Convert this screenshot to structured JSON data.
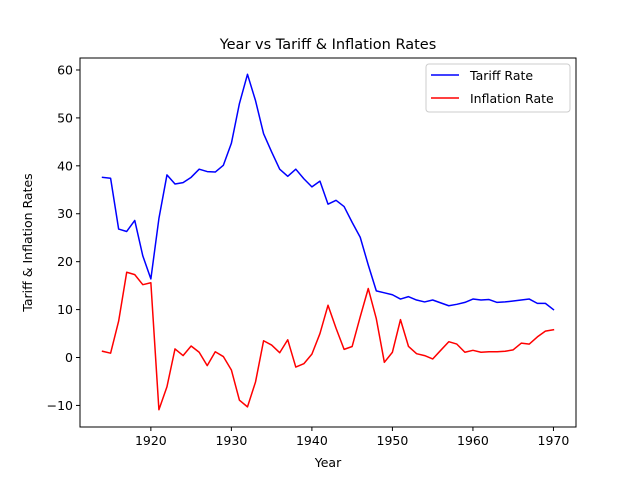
{
  "chart_data": {
    "type": "line",
    "title": "Year vs Tariff & Inflation Rates",
    "xlabel": "Year",
    "ylabel": "Tariff & Inflation Rates",
    "xlim": [
      1911.2,
      1972.8
    ],
    "ylim": [
      -14.5,
      62.5
    ],
    "xticks": [
      1920,
      1930,
      1940,
      1950,
      1960,
      1970
    ],
    "yticks": [
      -10,
      0,
      10,
      20,
      30,
      40,
      50,
      60
    ],
    "grid": false,
    "legend_position": "top-right",
    "x": [
      1914,
      1915,
      1916,
      1917,
      1918,
      1919,
      1920,
      1921,
      1922,
      1923,
      1924,
      1925,
      1926,
      1927,
      1928,
      1929,
      1930,
      1931,
      1932,
      1933,
      1934,
      1935,
      1936,
      1937,
      1938,
      1939,
      1940,
      1941,
      1942,
      1943,
      1944,
      1945,
      1946,
      1947,
      1948,
      1949,
      1950,
      1951,
      1952,
      1953,
      1954,
      1955,
      1956,
      1957,
      1958,
      1959,
      1960,
      1961,
      1962,
      1963,
      1964,
      1965,
      1966,
      1967,
      1968,
      1969,
      1970
    ],
    "series": [
      {
        "name": "Tariff Rate",
        "color": "#0000ff",
        "values": [
          37.6,
          37.4,
          26.8,
          26.3,
          28.6,
          21.2,
          16.4,
          29.0,
          38.1,
          36.2,
          36.5,
          37.6,
          39.3,
          38.8,
          38.7,
          40.1,
          44.7,
          53.0,
          59.1,
          53.6,
          46.7,
          42.9,
          39.3,
          37.8,
          39.3,
          37.3,
          35.6,
          36.8,
          32.0,
          32.8,
          31.5,
          28.2,
          25.1,
          19.3,
          13.9,
          13.5,
          13.1,
          12.2,
          12.7,
          12.0,
          11.6,
          12.0,
          11.4,
          10.8,
          11.1,
          11.5,
          12.2,
          12.0,
          12.1,
          11.5,
          11.6,
          11.8,
          12.0,
          12.2,
          11.3,
          11.3,
          10.0
        ]
      },
      {
        "name": "Inflation Rate",
        "color": "#ff0000",
        "values": [
          1.3,
          0.9,
          7.6,
          17.8,
          17.3,
          15.2,
          15.6,
          -10.9,
          -6.1,
          1.8,
          0.4,
          2.4,
          1.1,
          -1.7,
          1.2,
          0.2,
          -2.6,
          -8.9,
          -10.3,
          -5.1,
          3.5,
          2.6,
          1.0,
          3.7,
          -2.0,
          -1.3,
          0.7,
          5.0,
          10.9,
          6.1,
          1.7,
          2.3,
          8.5,
          14.4,
          8.1,
          -1.0,
          1.1,
          7.9,
          2.3,
          0.8,
          0.4,
          -0.3,
          1.5,
          3.3,
          2.8,
          1.1,
          1.5,
          1.1,
          1.2,
          1.2,
          1.3,
          1.6,
          3.0,
          2.8,
          4.3,
          5.5,
          5.8
        ]
      }
    ]
  }
}
